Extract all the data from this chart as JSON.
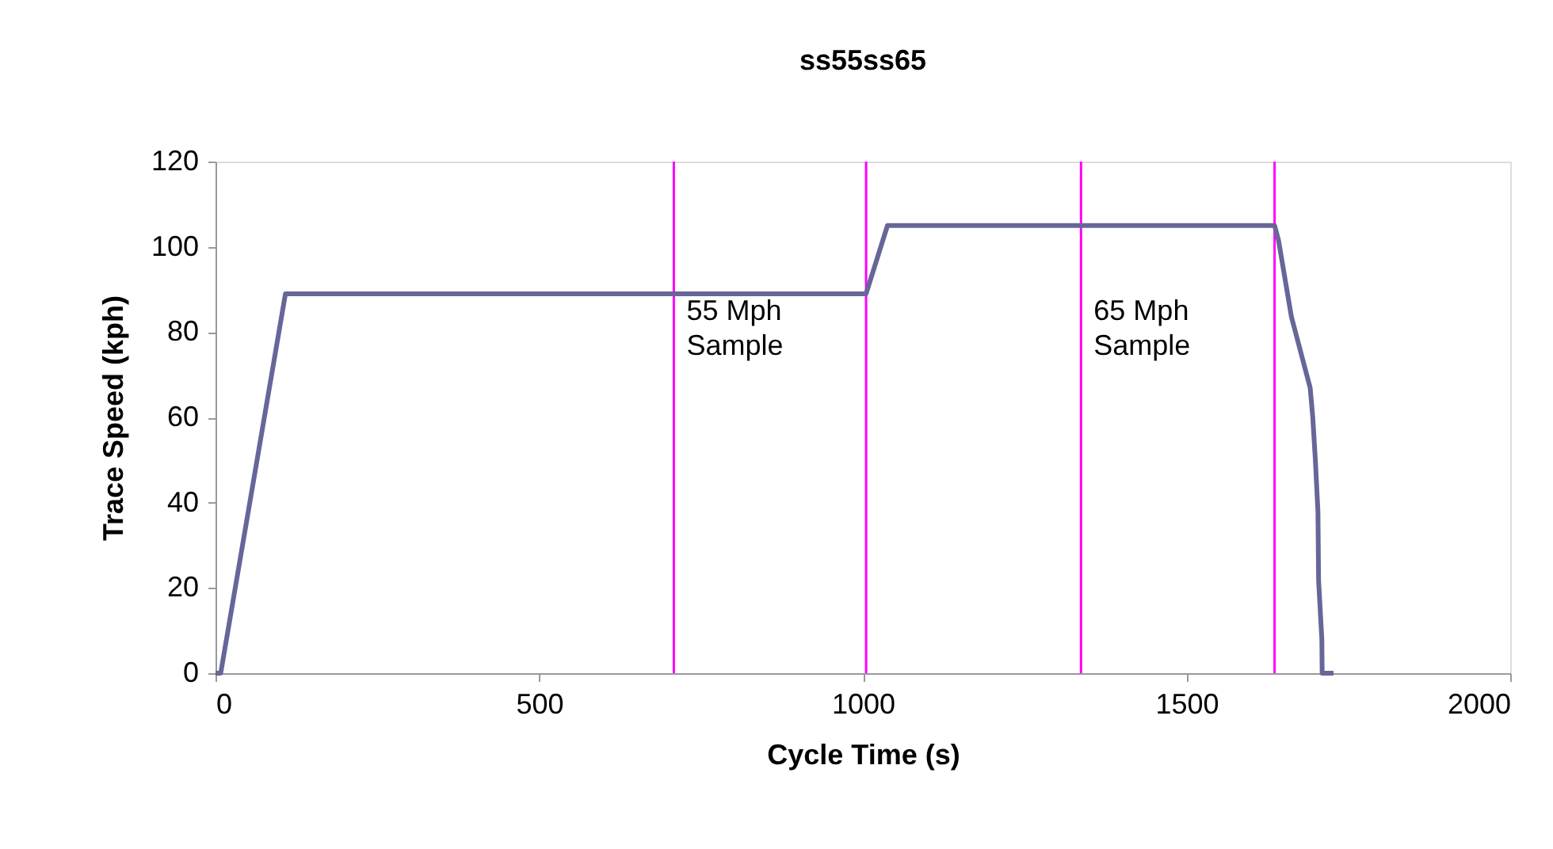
{
  "chart_data": {
    "type": "line",
    "title": "ss55ss65",
    "xlabel": "Cycle Time (s)",
    "ylabel": "Trace Speed (kph)",
    "x": [
      0,
      8,
      108,
      1005,
      1038,
      1636,
      1642,
      1662,
      1691,
      1695,
      1699,
      1703,
      1704,
      1709,
      1709.5,
      1727
    ],
    "series": [
      {
        "color": "#666699",
        "values": [
          0,
          0,
          89,
          89,
          105,
          105,
          101.6,
          83.6,
          66.9,
          60,
          50,
          37.8,
          21.7,
          8,
          0,
          0
        ]
      }
    ],
    "xlim": [
      0,
      2000
    ],
    "xticks": [
      0,
      500,
      1000,
      1500,
      2000
    ],
    "ylim": [
      0,
      120
    ],
    "yticks": [
      0,
      20,
      40,
      60,
      80,
      100,
      120
    ],
    "ref_lines": [
      {
        "axis": "x",
        "value": 708,
        "color": "#ff00ff"
      },
      {
        "axis": "x",
        "value": 1005,
        "color": "#ff00ff"
      },
      {
        "axis": "x",
        "value": 1337,
        "color": "#ff00ff"
      },
      {
        "axis": "x",
        "value": 1636,
        "color": "#ff00ff"
      }
    ],
    "annotations": [
      "55 Mph\nSample",
      "65 Mph\nSample"
    ],
    "grid": false,
    "marker": "none",
    "line_style": "solid"
  }
}
